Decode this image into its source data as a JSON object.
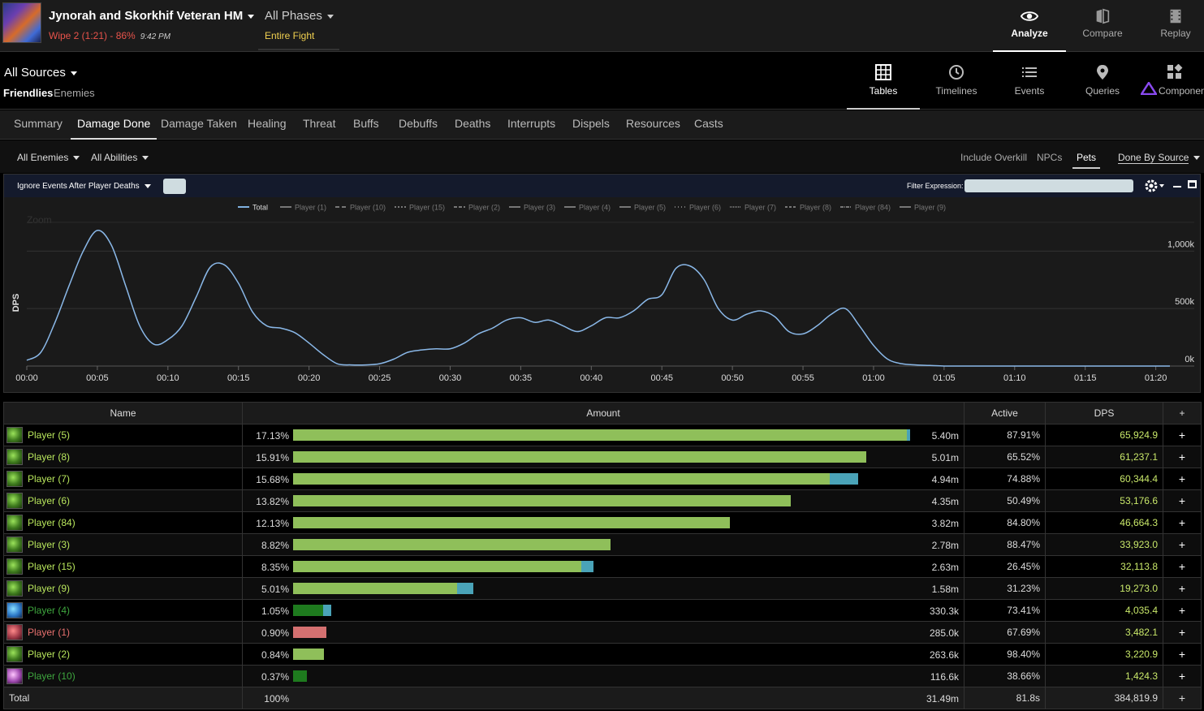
{
  "fight": {
    "title": "Jynorah and Skorkhif Veteran HM",
    "wipe": "Wipe 2 (1:21) - 86%",
    "time": "9:42 PM",
    "phases": "All Phases",
    "phase_sub": "Entire Fight"
  },
  "topnav": [
    {
      "label": "Analyze",
      "icon": "eye-icon"
    },
    {
      "label": "Compare",
      "icon": "compare-icon"
    },
    {
      "label": "Replay",
      "icon": "film-icon"
    }
  ],
  "sources": {
    "all_sources": "All Sources",
    "friendlies": "Friendlies",
    "enemies": "Enemies"
  },
  "viewnav": [
    {
      "label": "Tables",
      "icon": "grid-icon"
    },
    {
      "label": "Timelines",
      "icon": "clock-icon"
    },
    {
      "label": "Events",
      "icon": "list-icon"
    },
    {
      "label": "Queries",
      "icon": "map-pin-icon"
    },
    {
      "label": "Componen",
      "icon": "components-icon"
    }
  ],
  "tabs": [
    "Summary",
    "Damage Done",
    "Damage Taken",
    "Healing",
    "Threat",
    "Buffs",
    "Debuffs",
    "Deaths",
    "Interrupts",
    "Dispels",
    "Resources",
    "Casts"
  ],
  "filters": {
    "all_enemies": "All Enemies",
    "all_abilities": "All Abilities",
    "include_overkill": "Include Overkill",
    "npcs": "NPCs",
    "pets": "Pets",
    "done_by_source": "Done By Source"
  },
  "graph": {
    "ignore_deaths": "Ignore Events After Player Deaths",
    "filter_expression": "Filter Expression:",
    "filter_value": ""
  },
  "chart_data": {
    "type": "line",
    "ylabel": "DPS",
    "zoom_label": "Zoom",
    "legend": [
      "Total",
      "Player (1)",
      "Player (10)",
      "Player (15)",
      "Player (2)",
      "Player (3)",
      "Player (4)",
      "Player (5)",
      "Player (6)",
      "Player (7)",
      "Player (8)",
      "Player (84)",
      "Player (9)"
    ],
    "x_ticks": [
      "00:00",
      "00:05",
      "00:10",
      "00:15",
      "00:20",
      "00:25",
      "00:30",
      "00:35",
      "00:40",
      "00:45",
      "00:50",
      "00:55",
      "01:00",
      "01:05",
      "01:10",
      "01:15",
      "01:20"
    ],
    "y_ticks": [
      "0k",
      "500k",
      "1,000k"
    ],
    "y_tick_values": [
      0,
      500,
      1000
    ],
    "ylim": [
      0,
      1200
    ],
    "xlim": [
      0,
      81
    ],
    "series": [
      {
        "name": "Total",
        "x": [
          0,
          1,
          2,
          3,
          4,
          5,
          6,
          7,
          8,
          9,
          10,
          11,
          12,
          13,
          14,
          15,
          16,
          17,
          18,
          19,
          20,
          21,
          22,
          23,
          24,
          25,
          26,
          27,
          28,
          29,
          30,
          31,
          32,
          33,
          34,
          35,
          36,
          37,
          38,
          39,
          40,
          41,
          42,
          43,
          44,
          45,
          46,
          47,
          48,
          49,
          50,
          51,
          52,
          53,
          54,
          55,
          56,
          57,
          58,
          59,
          60,
          61,
          62,
          63,
          64,
          65,
          66,
          67,
          68,
          69,
          70,
          71,
          72,
          73,
          74,
          75,
          76,
          77,
          78,
          79,
          80,
          81
        ],
        "values": [
          50,
          120,
          380,
          700,
          1000,
          1180,
          1050,
          700,
          350,
          190,
          230,
          350,
          600,
          860,
          880,
          720,
          470,
          350,
          330,
          290,
          200,
          100,
          20,
          10,
          10,
          20,
          60,
          120,
          140,
          150,
          150,
          200,
          280,
          330,
          400,
          420,
          380,
          400,
          350,
          300,
          350,
          420,
          420,
          480,
          580,
          620,
          850,
          870,
          750,
          500,
          400,
          450,
          480,
          430,
          300,
          280,
          350,
          450,
          500,
          350,
          180,
          60,
          20,
          10,
          5,
          0,
          0,
          0,
          0,
          0,
          0,
          0,
          0,
          0,
          0,
          0,
          0,
          0,
          0,
          0,
          0,
          0
        ]
      }
    ]
  },
  "table": {
    "headers": {
      "name": "Name",
      "amount": "Amount",
      "active": "Active",
      "dps": "DPS",
      "plus": "+"
    },
    "rows": [
      {
        "name": "Player (5)",
        "pct": "17.13%",
        "amount": "5.40m",
        "active": "87.91%",
        "dps": "65,924.9",
        "spec": "green",
        "name_color": "#b8e65c",
        "bar_color": "#8fbf5a",
        "main_frac": 0.9947,
        "pet_frac": 0.0053
      },
      {
        "name": "Player (8)",
        "pct": "15.91%",
        "amount": "5.01m",
        "active": "65.52%",
        "dps": "61,237.1",
        "spec": "green",
        "name_color": "#b8e65c",
        "bar_color": "#8fbf5a",
        "main_frac": 0.9289,
        "pet_frac": 0
      },
      {
        "name": "Player (7)",
        "pct": "15.68%",
        "amount": "4.94m",
        "active": "74.88%",
        "dps": "60,344.4",
        "spec": "green",
        "name_color": "#b8e65c",
        "bar_color": "#8fbf5a",
        "main_frac": 0.8697,
        "pet_frac": 0.0461
      },
      {
        "name": "Player (6)",
        "pct": "13.82%",
        "amount": "4.35m",
        "active": "50.49%",
        "dps": "53,176.6",
        "spec": "green",
        "name_color": "#b8e65c",
        "bar_color": "#8fbf5a",
        "main_frac": 0.8066,
        "pet_frac": 0
      },
      {
        "name": "Player (84)",
        "pct": "12.13%",
        "amount": "3.82m",
        "active": "84.80%",
        "dps": "46,664.3",
        "spec": "green",
        "name_color": "#b8e65c",
        "bar_color": "#8fbf5a",
        "main_frac": 0.7079,
        "pet_frac": 0
      },
      {
        "name": "Player (3)",
        "pct": "8.82%",
        "amount": "2.78m",
        "active": "88.47%",
        "dps": "33,923.0",
        "spec": "green",
        "name_color": "#b8e65c",
        "bar_color": "#8fbf5a",
        "main_frac": 0.5145,
        "pet_frac": 0
      },
      {
        "name": "Player (15)",
        "pct": "8.35%",
        "amount": "2.63m",
        "active": "26.45%",
        "dps": "32,113.8",
        "spec": "green",
        "name_color": "#b8e65c",
        "bar_color": "#8fbf5a",
        "main_frac": 0.4671,
        "pet_frac": 0.0197
      },
      {
        "name": "Player (9)",
        "pct": "5.01%",
        "amount": "1.58m",
        "active": "31.23%",
        "dps": "19,273.0",
        "spec": "green",
        "name_color": "#b8e65c",
        "bar_color": "#8fbf5a",
        "main_frac": 0.2664,
        "pet_frac": 0.0263
      },
      {
        "name": "Player (4)",
        "pct": "1.05%",
        "amount": "330.3k",
        "active": "73.41%",
        "dps": "4,035.4",
        "spec": "blue",
        "name_color": "#3ea63e",
        "bar_color": "#1e7a1e",
        "main_frac": 0.0487,
        "pet_frac": 0.0132
      },
      {
        "name": "Player (1)",
        "pct": "0.90%",
        "amount": "285.0k",
        "active": "67.69%",
        "dps": "3,482.1",
        "spec": "red",
        "name_color": "#e8706e",
        "bar_color": "#d47070",
        "main_frac": 0.0539,
        "pet_frac": 0
      },
      {
        "name": "Player (2)",
        "pct": "0.84%",
        "amount": "263.6k",
        "active": "98.40%",
        "dps": "3,220.9",
        "spec": "green",
        "name_color": "#b8e65c",
        "bar_color": "#8fbf5a",
        "main_frac": 0.05,
        "pet_frac": 0
      },
      {
        "name": "Player (10)",
        "pct": "0.37%",
        "amount": "116.6k",
        "active": "38.66%",
        "dps": "1,424.3",
        "spec": "pink",
        "name_color": "#3ea63e",
        "bar_color": "#1e7a1e",
        "main_frac": 0.0224,
        "pet_frac": 0
      }
    ],
    "total": {
      "name": "Total",
      "pct": "100%",
      "amount": "31.49m",
      "active": "81.8s",
      "dps": "384,819.9"
    }
  }
}
